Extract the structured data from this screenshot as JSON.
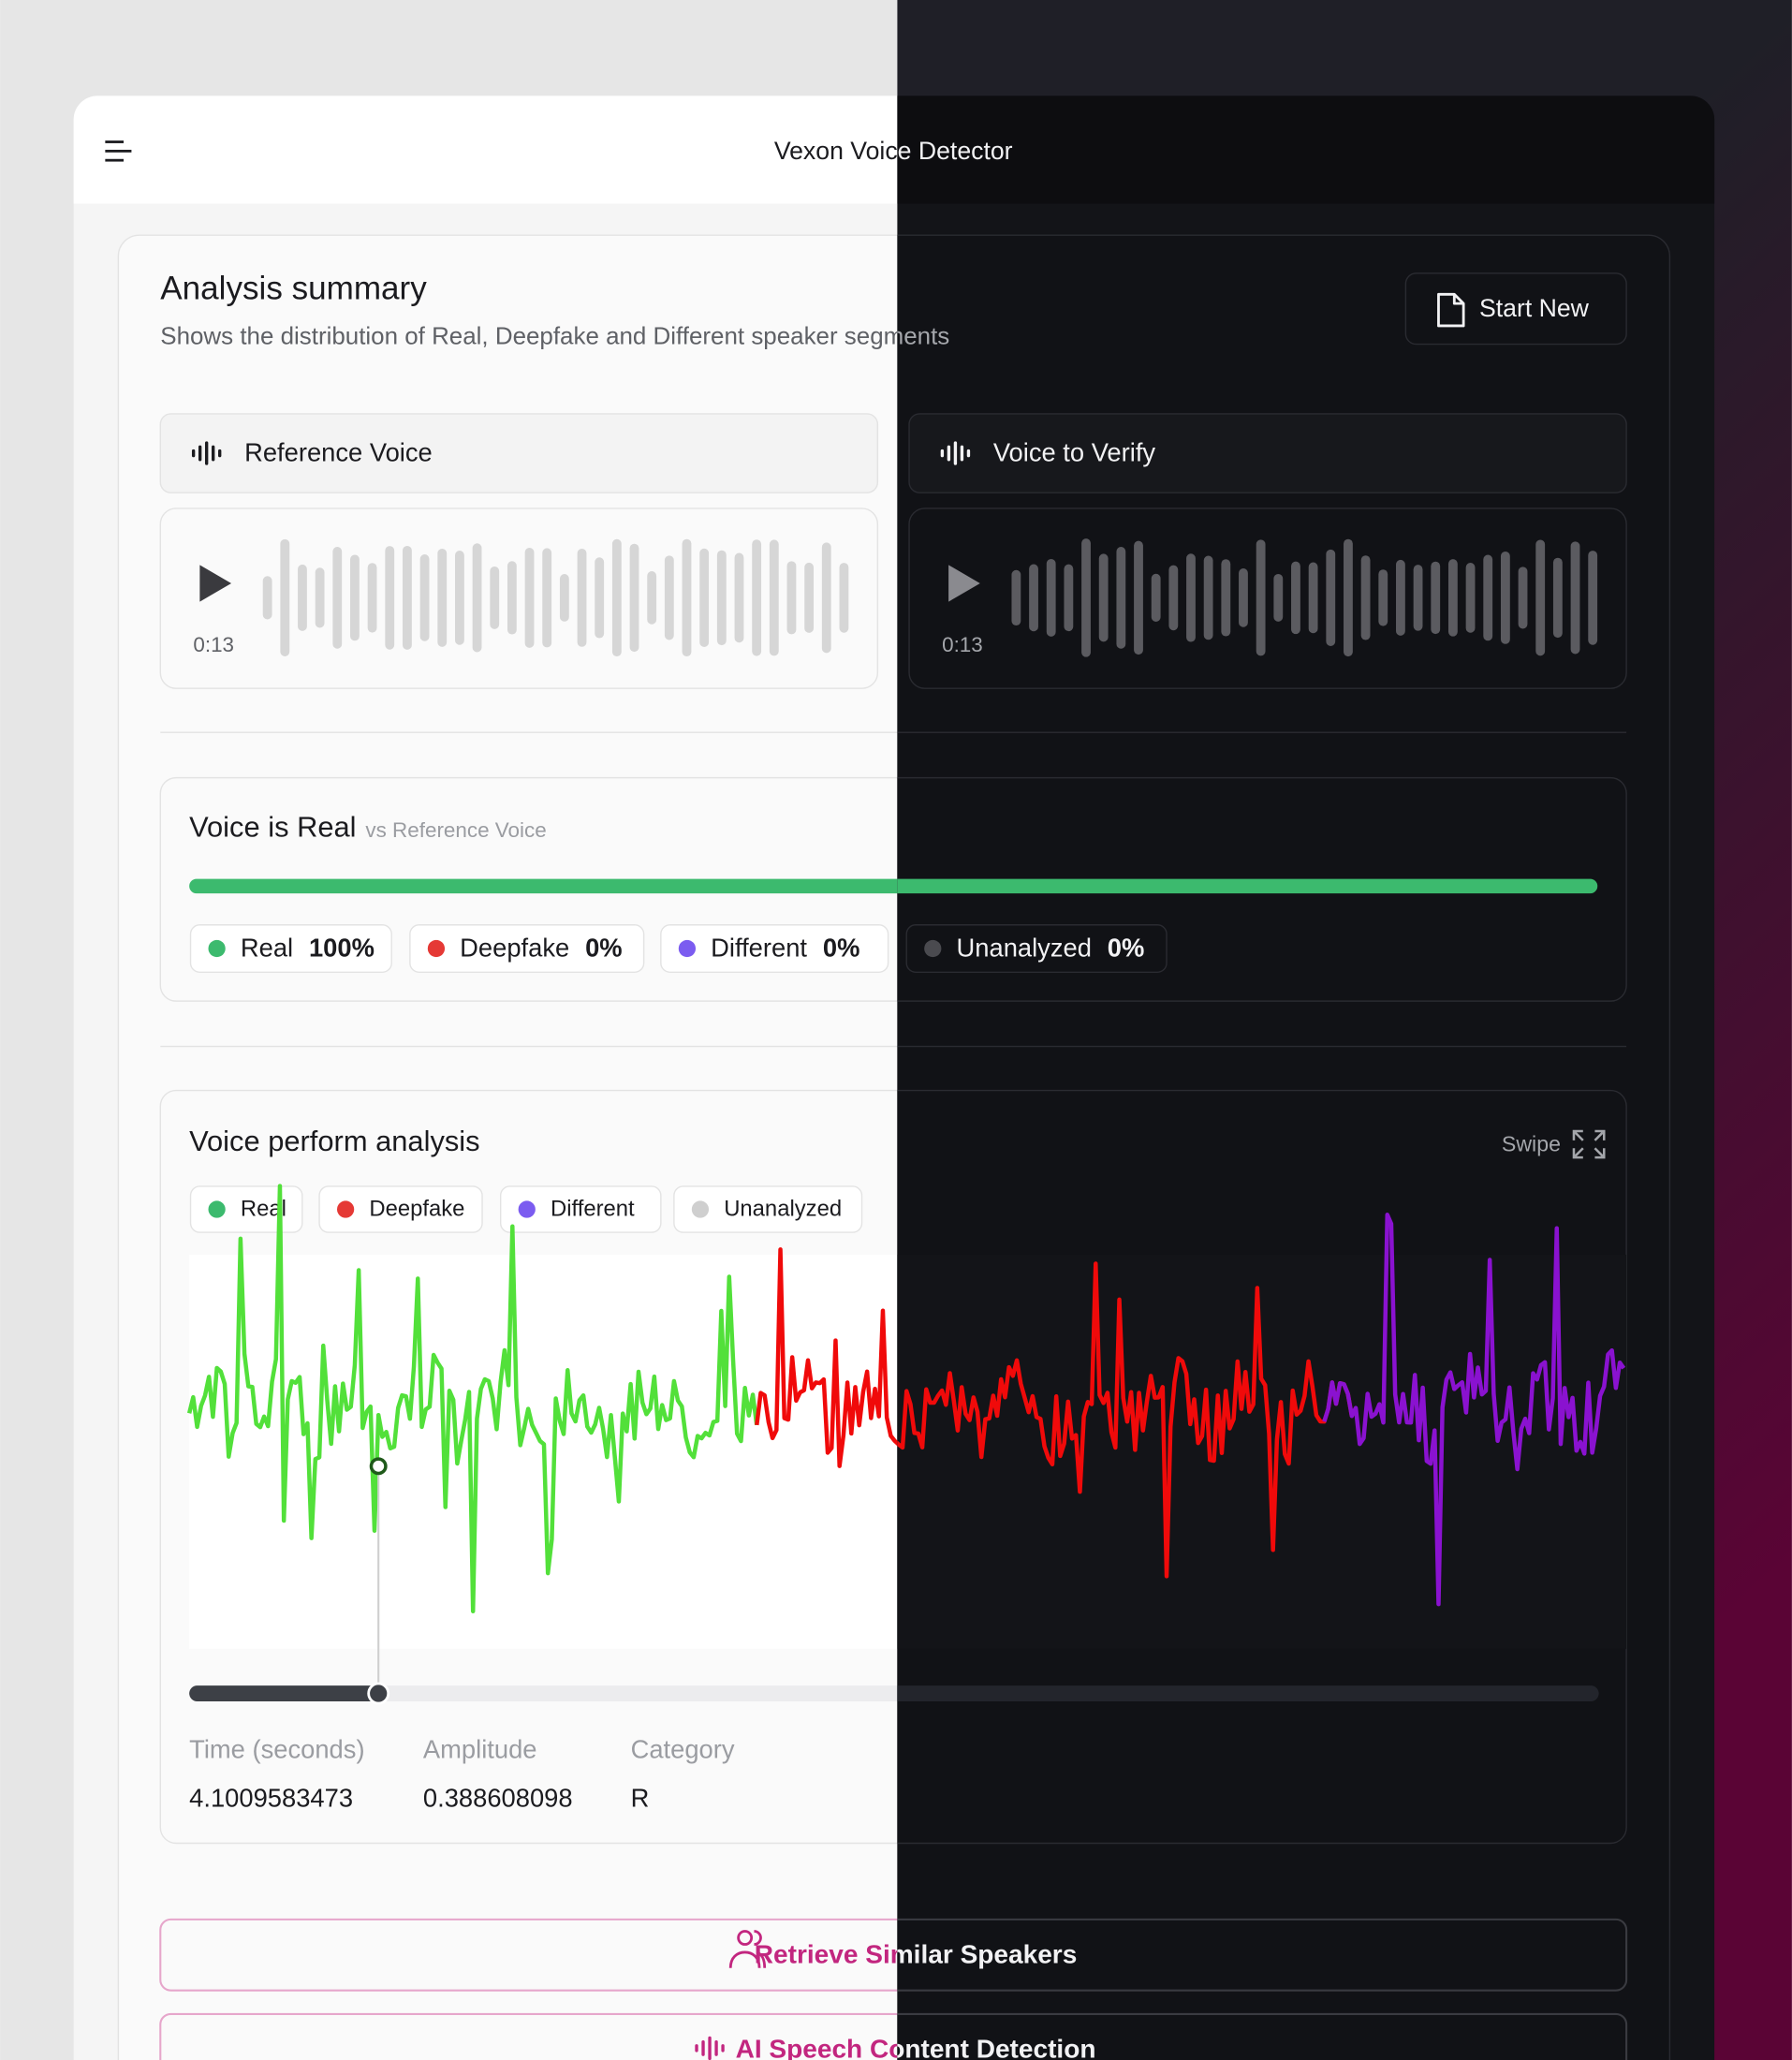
{
  "header": {
    "title": "Vexon Voice Detector"
  },
  "summary": {
    "title": "Analysis summary",
    "subtitle": "Shows the distribution of Real, Deepfake and Different speaker segments",
    "button": "Start New"
  },
  "players": [
    {
      "label": "Reference Voice",
      "duration": "0:13"
    },
    {
      "label": "Voice to Verify",
      "duration": "0:13"
    }
  ],
  "result": {
    "title": "Voice is Real",
    "subtitle": "vs Reference Voice",
    "chips": [
      {
        "name": "Real",
        "value": "100%"
      },
      {
        "name": "Deepfake",
        "value": "0%"
      },
      {
        "name": "Different",
        "value": "0%"
      },
      {
        "name": "Unanalyzed",
        "value": "0%"
      }
    ]
  },
  "analysis": {
    "title": "Voice perform analysis",
    "swipe": "Swipe",
    "legend": [
      "Real",
      "Deepfake",
      "Different",
      "Unanalyzed"
    ],
    "readout": {
      "labels": [
        "Time (seconds)",
        "Amplitude",
        "Category"
      ],
      "values": [
        "4.1009583473",
        "0.388608098",
        "R"
      ]
    }
  },
  "actions": [
    "Retrieve Similar Speakers",
    "AI Speech Content Detection"
  ]
}
